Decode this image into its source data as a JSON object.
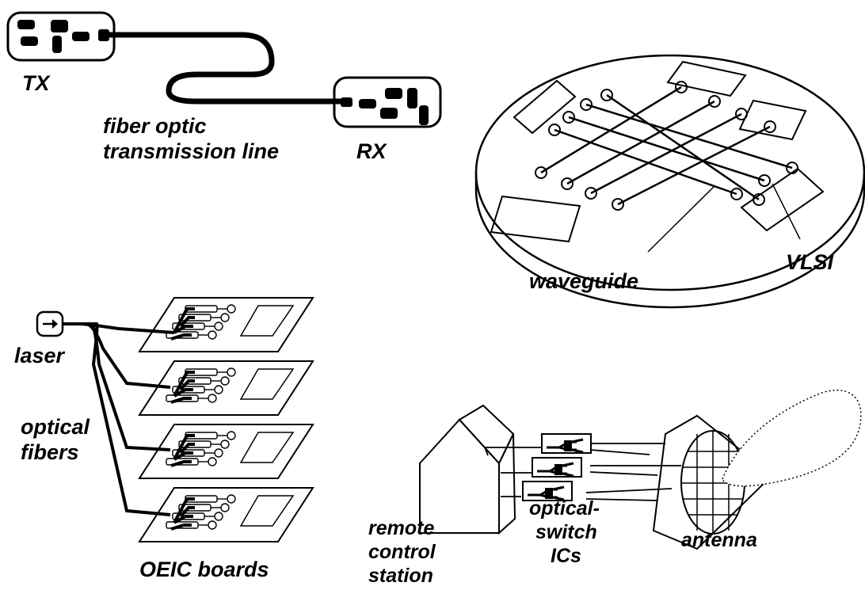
{
  "labels": {
    "tx": "TX",
    "rx": "RX",
    "fiber_line1": "fiber optic",
    "fiber_line2": "transmission line",
    "waveguide": "waveguide",
    "vlsi": "VLSI",
    "laser": "laser",
    "optical_fibers_line1": "optical",
    "optical_fibers_line2": "fibers",
    "oeic_boards": "OEIC boards",
    "remote_line1": "remote",
    "remote_line2": "control",
    "remote_line3": "station",
    "switch_line1": "optical-",
    "switch_line2": "switch",
    "switch_line3": "ICs",
    "antenna": "antenna"
  },
  "colors": {
    "ink": "#000000",
    "paper": "#ffffff"
  }
}
